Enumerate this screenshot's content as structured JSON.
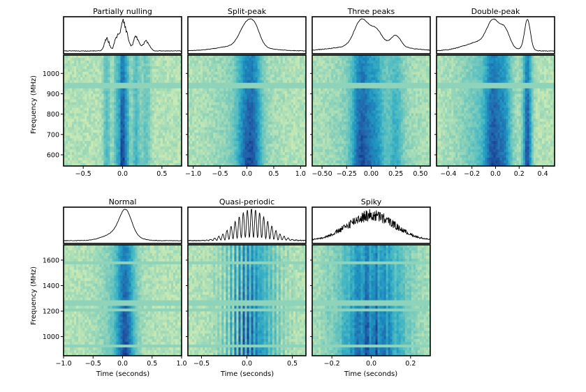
{
  "figure": {
    "ylabel_frequency": "Frequency (MHz)",
    "xlabel_time": "Time (seconds)"
  },
  "colormap": [
    "#f7fcc8",
    "#c9e9b4",
    "#7fcdbb",
    "#41b6c4",
    "#1d91c0",
    "#225ea8",
    "#0c2c84"
  ],
  "chart_data": [
    {
      "type": "heatmap",
      "title": "Partially nulling",
      "xlim": [
        -0.75,
        0.75
      ],
      "xticks": [
        -0.5,
        0.0,
        0.5
      ],
      "xtick_labels": [
        "−0.5",
        "0.0",
        "0.5"
      ],
      "ylim": [
        545,
        1090
      ],
      "yticks": [
        600,
        700,
        800,
        900,
        1000
      ],
      "profile_style": "nulling",
      "components": [
        {
          "center": -0.2,
          "width": 0.03,
          "amplitude": 0.45
        },
        {
          "center": -0.07,
          "width": 0.03,
          "amplitude": 0.55
        },
        {
          "center": 0.0,
          "width": 0.025,
          "amplitude": 1.0
        },
        {
          "center": 0.05,
          "width": 0.03,
          "amplitude": 0.6
        },
        {
          "center": 0.17,
          "width": 0.035,
          "amplitude": 0.5
        },
        {
          "center": 0.3,
          "width": 0.04,
          "amplitude": 0.35
        }
      ],
      "rfi_bands_mhz": [
        [
          930,
          955
        ]
      ]
    },
    {
      "type": "heatmap",
      "title": "Split-peak",
      "xlim": [
        -1.1,
        1.1
      ],
      "xticks": [
        -1.0,
        -0.5,
        0.0,
        0.5,
        1.0
      ],
      "xtick_labels": [
        "−1.0",
        "−0.5",
        "0.0",
        "0.5",
        "1.0"
      ],
      "ylim": [
        545,
        1090
      ],
      "yticks": [
        600,
        700,
        800,
        900,
        1000
      ],
      "profile_style": "smooth",
      "components": [
        {
          "center": -0.02,
          "width": 0.12,
          "amplitude": 0.9
        },
        {
          "center": 0.15,
          "width": 0.1,
          "amplitude": 0.75
        },
        {
          "center": -0.1,
          "width": 0.4,
          "amplitude": 0.25
        }
      ],
      "rfi_bands_mhz": [
        [
          930,
          955
        ]
      ]
    },
    {
      "type": "heatmap",
      "title": "Three peaks",
      "xlim": [
        -0.6,
        0.6
      ],
      "xticks": [
        -0.5,
        -0.25,
        0.0,
        0.25,
        0.5
      ],
      "xtick_labels": [
        "−0.50",
        "−0.25",
        "0.00",
        "0.25",
        "0.50"
      ],
      "ylim": [
        545,
        1090
      ],
      "yticks": [
        600,
        700,
        800,
        900,
        1000
      ],
      "profile_style": "smooth",
      "components": [
        {
          "center": -0.1,
          "width": 0.07,
          "amplitude": 0.8
        },
        {
          "center": 0.05,
          "width": 0.06,
          "amplitude": 0.45
        },
        {
          "center": 0.25,
          "width": 0.05,
          "amplitude": 0.35
        },
        {
          "center": 0.0,
          "width": 0.3,
          "amplitude": 0.2
        }
      ],
      "rfi_bands_mhz": [
        [
          930,
          955
        ]
      ]
    },
    {
      "type": "heatmap",
      "title": "Double-peak",
      "xlim": [
        -0.5,
        0.5
      ],
      "xticks": [
        -0.4,
        -0.2,
        0.0,
        0.2,
        0.4
      ],
      "xtick_labels": [
        "−0.4",
        "−0.2",
        "0.0",
        "0.2",
        "0.4"
      ],
      "ylim": [
        545,
        1090
      ],
      "yticks": [
        600,
        700,
        800,
        900,
        1000
      ],
      "profile_style": "smooth",
      "components": [
        {
          "center": -0.02,
          "width": 0.05,
          "amplitude": 0.7
        },
        {
          "center": 0.08,
          "width": 0.04,
          "amplitude": 0.5
        },
        {
          "center": 0.27,
          "width": 0.025,
          "amplitude": 0.95
        },
        {
          "center": -0.1,
          "width": 0.15,
          "amplitude": 0.3
        }
      ],
      "rfi_bands_mhz": [
        [
          930,
          955
        ]
      ]
    },
    {
      "type": "heatmap",
      "title": "Normal",
      "xlim": [
        -1.0,
        1.0
      ],
      "xticks": [
        -1.0,
        -0.5,
        0.0,
        0.5,
        1.0
      ],
      "xtick_labels": [
        "−1.0",
        "−0.5",
        "0.0",
        "0.5",
        "1.0"
      ],
      "ylim": [
        850,
        1720
      ],
      "yticks": [
        1000,
        1200,
        1400,
        1600
      ],
      "profile_style": "smooth",
      "components": [
        {
          "center": 0.05,
          "width": 0.1,
          "amplitude": 0.9
        },
        {
          "center": -0.05,
          "width": 0.22,
          "amplitude": 0.35
        }
      ],
      "rfi_bands_mhz": [
        [
          1570,
          1590
        ],
        [
          1250,
          1275
        ],
        [
          1200,
          1215
        ],
        [
          905,
          930
        ]
      ]
    },
    {
      "type": "heatmap",
      "title": "Quasi-periodic",
      "xlim": [
        -0.65,
        0.65
      ],
      "xticks": [
        -0.5,
        0.0,
        0.5
      ],
      "xtick_labels": [
        "−0.5",
        "0.0",
        "0.5"
      ],
      "ylim": [
        850,
        1720
      ],
      "yticks": [
        1000,
        1200,
        1400,
        1600
      ],
      "profile_style": "periodic",
      "components": [
        {
          "center": 0.05,
          "width": 0.18,
          "amplitude": 0.95
        }
      ],
      "rfi_bands_mhz": [
        [
          1570,
          1590
        ],
        [
          1250,
          1275
        ],
        [
          1200,
          1215
        ],
        [
          905,
          930
        ]
      ]
    },
    {
      "type": "heatmap",
      "title": "Spiky",
      "xlim": [
        -0.3,
        0.3
      ],
      "xticks": [
        -0.2,
        0.0,
        0.2
      ],
      "xtick_labels": [
        "−0.2",
        "0.0",
        "0.2"
      ],
      "ylim": [
        850,
        1720
      ],
      "yticks": [
        1000,
        1200,
        1400,
        1600
      ],
      "profile_style": "spiky",
      "components": [
        {
          "center": 0.0,
          "width": 0.12,
          "amplitude": 0.8
        }
      ],
      "rfi_bands_mhz": [
        [
          1570,
          1590
        ],
        [
          1250,
          1275
        ],
        [
          1200,
          1215
        ],
        [
          905,
          930
        ]
      ]
    }
  ]
}
